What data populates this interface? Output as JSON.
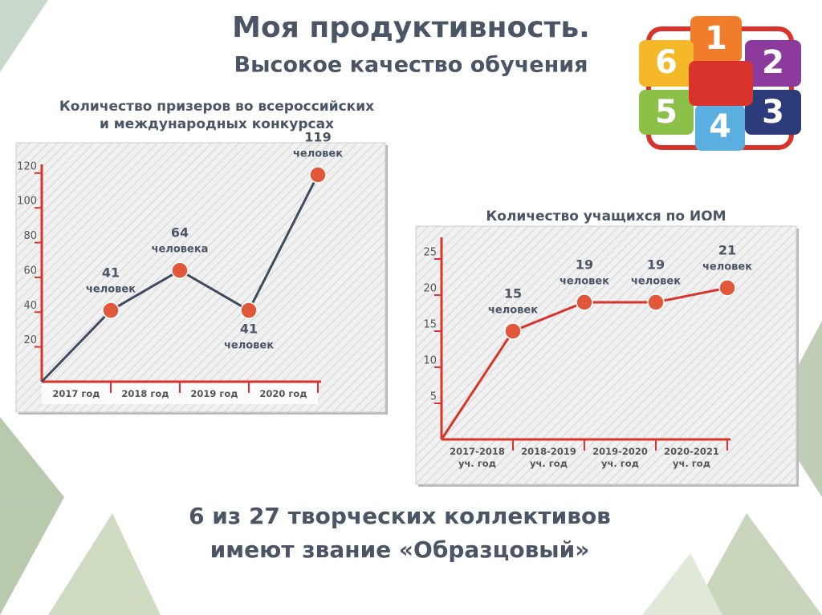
{
  "header": {
    "title": "Моя продуктивность.",
    "subtitle": "Высокое качество обучения"
  },
  "logo": [
    "1",
    "2",
    "3",
    "4",
    "5",
    "6"
  ],
  "chart_data": [
    {
      "type": "line",
      "title": [
        "Количество призеров во всероссийских",
        "и международных конкурсах"
      ],
      "categories": [
        "2017 год",
        "2018 год",
        "2019 год",
        "2020 год"
      ],
      "values": [
        41,
        64,
        41,
        119
      ],
      "value_notes": [
        "человек",
        "человека",
        "человек",
        "человек"
      ],
      "color": "#3f4b5e",
      "marker_color": "#e0573a",
      "axis_color": "#d9342b",
      "ylim": [
        0,
        125
      ],
      "yticks": [
        20,
        40,
        60,
        80,
        100,
        120
      ]
    },
    {
      "type": "line",
      "title": [
        "Количество учащихся по ИОМ"
      ],
      "categories": [
        "2017-2018 уч. год",
        "2018-2019 уч. год",
        "2019-2020 уч. год",
        "2020-2021 уч. год"
      ],
      "values": [
        15,
        19,
        19,
        21
      ],
      "value_notes": [
        "человек",
        "человек",
        "человек",
        "человек"
      ],
      "color": "#d9342b",
      "marker_color": "#e0573a",
      "axis_color": "#d9342b",
      "ylim": [
        0,
        28
      ],
      "yticks": [
        5,
        10,
        15,
        20,
        25
      ]
    }
  ],
  "footer": [
    "6 из 27 творческих коллективов",
    "имеют звание «Образцовый»"
  ]
}
